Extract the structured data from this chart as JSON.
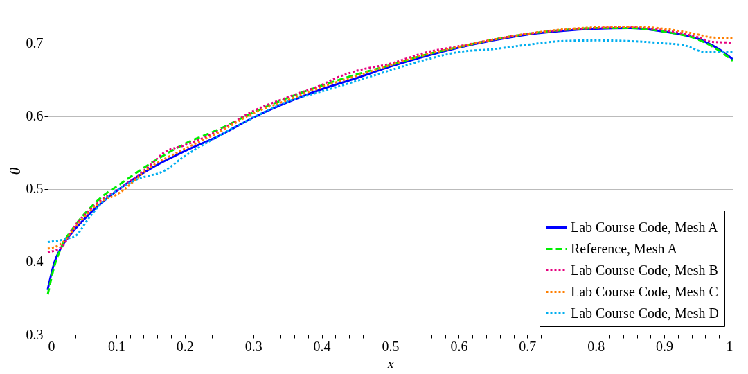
{
  "chart_data": {
    "type": "line",
    "xlabel": "x",
    "ylabel": "θ",
    "xlim": [
      0,
      1
    ],
    "ylim": [
      0.3,
      0.75
    ],
    "xticks": [
      0,
      {
        "value": 0.02,
        "label": null
      },
      {
        "value": 0.04,
        "label": null
      },
      {
        "value": 0.06,
        "label": null
      },
      {
        "value": 0.08,
        "label": null
      },
      0.1,
      {
        "value": 0.12,
        "label": null
      },
      {
        "value": 0.14,
        "label": null
      },
      {
        "value": 0.16,
        "label": null
      },
      {
        "value": 0.18,
        "label": null
      },
      0.2,
      {
        "value": 0.22,
        "label": null
      },
      {
        "value": 0.24,
        "label": null
      },
      {
        "value": 0.26,
        "label": null
      },
      {
        "value": 0.28,
        "label": null
      },
      0.3,
      {
        "value": 0.32,
        "label": null
      },
      {
        "value": 0.34,
        "label": null
      },
      {
        "value": 0.36,
        "label": null
      },
      {
        "value": 0.38,
        "label": null
      },
      0.4,
      {
        "value": 0.42,
        "label": null
      },
      {
        "value": 0.44,
        "label": null
      },
      {
        "value": 0.46,
        "label": null
      },
      {
        "value": 0.48,
        "label": null
      },
      0.5,
      {
        "value": 0.52,
        "label": null
      },
      {
        "value": 0.54,
        "label": null
      },
      {
        "value": 0.56,
        "label": null
      },
      {
        "value": 0.58,
        "label": null
      },
      0.6,
      {
        "value": 0.62,
        "label": null
      },
      {
        "value": 0.64,
        "label": null
      },
      {
        "value": 0.66,
        "label": null
      },
      {
        "value": 0.68,
        "label": null
      },
      0.7,
      {
        "value": 0.72,
        "label": null
      },
      {
        "value": 0.74,
        "label": null
      },
      {
        "value": 0.76,
        "label": null
      },
      {
        "value": 0.78,
        "label": null
      },
      0.8,
      {
        "value": 0.82,
        "label": null
      },
      {
        "value": 0.84,
        "label": null
      },
      {
        "value": 0.86,
        "label": null
      },
      {
        "value": 0.88,
        "label": null
      },
      0.9,
      {
        "value": 0.92,
        "label": null
      },
      {
        "value": 0.94,
        "label": null
      },
      {
        "value": 0.96,
        "label": null
      },
      {
        "value": 0.98,
        "label": null
      },
      1
    ],
    "yticks": [
      0.3,
      0.4,
      0.5,
      0.6,
      0.7
    ],
    "grid": "y",
    "legend": "bottom right",
    "marker": "none",
    "series": [
      {
        "name": "Lab Course Code, Mesh A",
        "color": "#0000ff",
        "line_style": "solid",
        "x": [
          0,
          0.01,
          0.02,
          0.04,
          0.06,
          0.08,
          0.1,
          0.15,
          0.2,
          0.25,
          0.3,
          0.35,
          0.4,
          0.45,
          0.5,
          0.55,
          0.6,
          0.65,
          0.7,
          0.75,
          0.8,
          0.85,
          0.9,
          0.95,
          0.98,
          1.0
        ],
        "values": [
          0.362,
          0.4,
          0.42,
          0.445,
          0.465,
          0.482,
          0.497,
          0.528,
          0.552,
          0.573,
          0.598,
          0.619,
          0.637,
          0.652,
          0.668,
          0.682,
          0.694,
          0.704,
          0.712,
          0.717,
          0.72,
          0.721,
          0.716,
          0.706,
          0.692,
          0.678
        ]
      },
      {
        "name": "Reference, Mesh A",
        "color": "#00ee00",
        "line_style": "dashed",
        "x": [
          0,
          0.01,
          0.02,
          0.04,
          0.06,
          0.08,
          0.1,
          0.15,
          0.2,
          0.25,
          0.3,
          0.35,
          0.4,
          0.45,
          0.5,
          0.55,
          0.6,
          0.65,
          0.7,
          0.75,
          0.8,
          0.85,
          0.9,
          0.95,
          0.98,
          1.0
        ],
        "values": [
          0.355,
          0.395,
          0.42,
          0.45,
          0.472,
          0.49,
          0.503,
          0.535,
          0.562,
          0.582,
          0.605,
          0.625,
          0.642,
          0.657,
          0.67,
          0.684,
          0.695,
          0.705,
          0.713,
          0.718,
          0.721,
          0.721,
          0.716,
          0.705,
          0.69,
          0.676
        ]
      },
      {
        "name": "Lab Course Code, Mesh B",
        "color": "#e6007e",
        "line_style": "dotted",
        "x": [
          0,
          0.02,
          0.04,
          0.06,
          0.08,
          0.1,
          0.15,
          0.17,
          0.2,
          0.25,
          0.3,
          0.35,
          0.4,
          0.42,
          0.45,
          0.5,
          0.55,
          0.6,
          0.65,
          0.7,
          0.75,
          0.8,
          0.85,
          0.9,
          0.95,
          0.97,
          1.0
        ],
        "values": [
          0.413,
          0.42,
          0.45,
          0.47,
          0.486,
          0.497,
          0.533,
          0.55,
          0.56,
          0.58,
          0.607,
          0.626,
          0.643,
          0.652,
          0.662,
          0.672,
          0.687,
          0.696,
          0.705,
          0.713,
          0.718,
          0.721,
          0.722,
          0.718,
          0.708,
          0.702,
          0.701
        ]
      },
      {
        "name": "Lab Course Code, Mesh C",
        "color": "#ff7f00",
        "line_style": "dotted",
        "x": [
          0,
          0.02,
          0.04,
          0.06,
          0.08,
          0.1,
          0.15,
          0.2,
          0.25,
          0.3,
          0.35,
          0.4,
          0.45,
          0.5,
          0.55,
          0.6,
          0.65,
          0.7,
          0.75,
          0.8,
          0.85,
          0.9,
          0.95,
          0.97,
          1.0
        ],
        "values": [
          0.418,
          0.425,
          0.447,
          0.468,
          0.484,
          0.492,
          0.53,
          0.555,
          0.578,
          0.604,
          0.622,
          0.64,
          0.655,
          0.67,
          0.684,
          0.695,
          0.705,
          0.713,
          0.719,
          0.722,
          0.723,
          0.72,
          0.712,
          0.708,
          0.707
        ]
      },
      {
        "name": "Lab Course Code, Mesh D",
        "color": "#00aeef",
        "line_style": "dotted",
        "x": [
          0,
          0.03,
          0.04,
          0.06,
          0.08,
          0.1,
          0.13,
          0.17,
          0.2,
          0.25,
          0.3,
          0.35,
          0.4,
          0.45,
          0.5,
          0.55,
          0.6,
          0.65,
          0.7,
          0.75,
          0.8,
          0.85,
          0.9,
          0.93,
          0.96,
          1.0
        ],
        "values": [
          0.427,
          0.432,
          0.435,
          0.46,
          0.482,
          0.497,
          0.513,
          0.525,
          0.545,
          0.573,
          0.598,
          0.62,
          0.634,
          0.648,
          0.663,
          0.677,
          0.688,
          0.692,
          0.698,
          0.703,
          0.704,
          0.703,
          0.7,
          0.697,
          0.688,
          0.688
        ]
      }
    ]
  }
}
